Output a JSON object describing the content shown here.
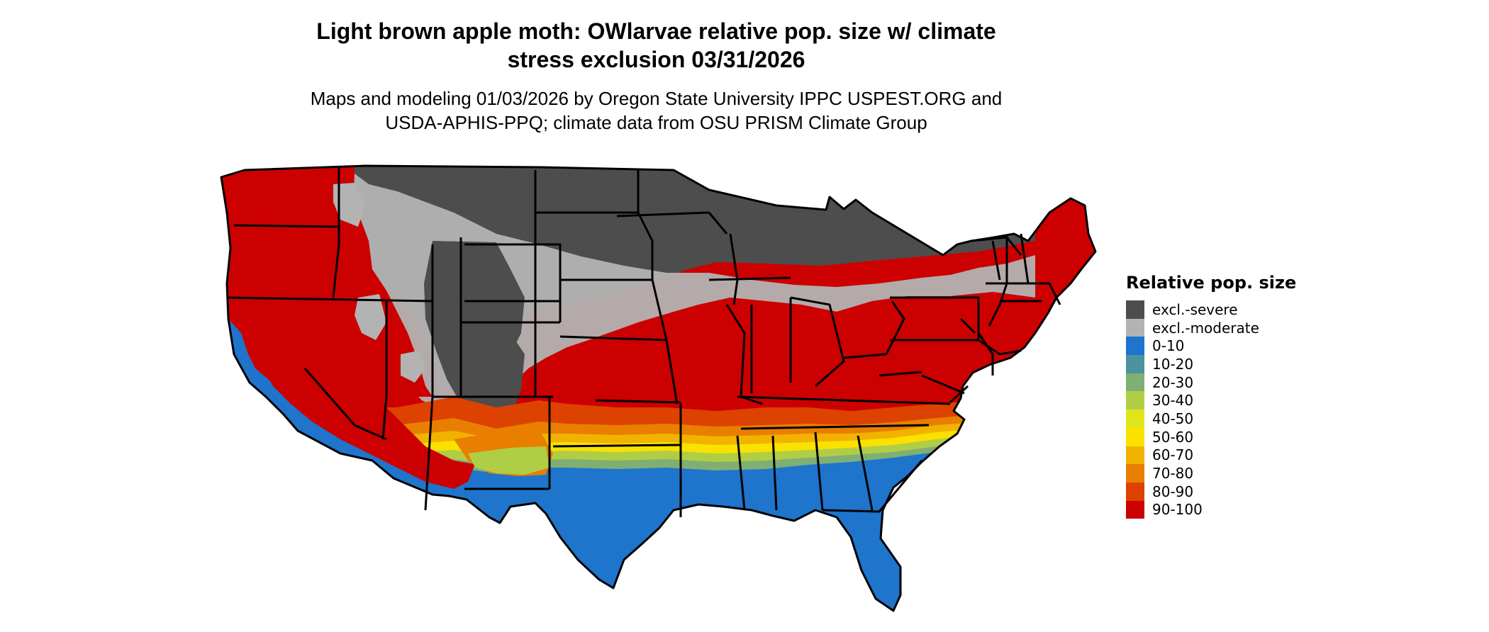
{
  "title": {
    "line1": "Light brown apple moth: OWlarvae relative pop. size w/ climate",
    "line2": "stress exclusion 03/31/2026"
  },
  "subtitle": {
    "line1": "Maps and modeling 01/03/2026 by Oregon State University IPPC USPEST.ORG and",
    "line2": "USDA-APHIS-PPQ; climate data from OSU PRISM Climate Group"
  },
  "legend": {
    "title": "Relative pop. size",
    "items": [
      {
        "label": "excl.-severe",
        "color": "#4d4d4d"
      },
      {
        "label": "excl.-moderate",
        "color": "#b3b3b3"
      },
      {
        "label": "0-10",
        "color": "#1f74cc"
      },
      {
        "label": "10-20",
        "color": "#4a93a0"
      },
      {
        "label": "20-30",
        "color": "#7faf73"
      },
      {
        "label": "30-40",
        "color": "#b0ce45"
      },
      {
        "label": "40-50",
        "color": "#e0e61a"
      },
      {
        "label": "50-60",
        "color": "#fae100"
      },
      {
        "label": "60-70",
        "color": "#f2b200"
      },
      {
        "label": "70-80",
        "color": "#e97f00"
      },
      {
        "label": "80-90",
        "color": "#dd4200"
      },
      {
        "label": "90-100",
        "color": "#cc0000"
      }
    ]
  }
}
